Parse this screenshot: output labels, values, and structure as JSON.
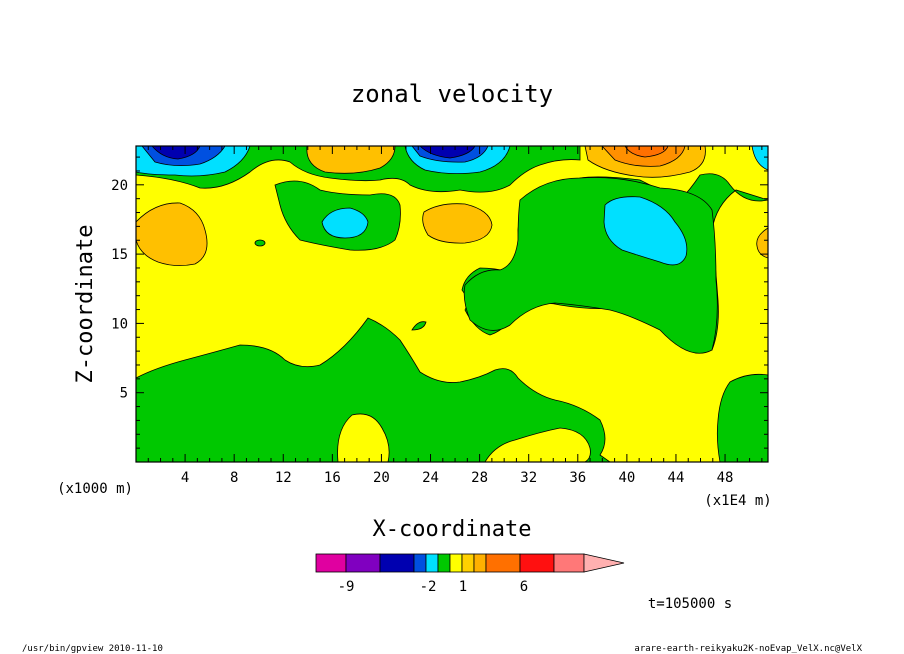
{
  "chart_data": {
    "type": "heatmap",
    "title": "zonal velocity",
    "xlabel": "X-coordinate",
    "ylabel": "Z-coordinate",
    "x_unit_left": "(x1000 m)",
    "x_unit_right": "(x1E4 m)",
    "x_ticks": [
      4,
      8,
      12,
      16,
      20,
      24,
      28,
      32,
      36,
      40,
      44,
      48
    ],
    "y_ticks": [
      5,
      10,
      15,
      20
    ],
    "xlim": [
      0,
      51.5
    ],
    "ylim": [
      0,
      22.8
    ],
    "time_label": "t=105000 s",
    "colorbar": {
      "colors": [
        "#e000a0",
        "#8000c0",
        "#0000b0",
        "#0050e0",
        "#00e0ff",
        "#00c800",
        "#ffff00",
        "#ffd000",
        "#ffb000",
        "#ff7000",
        "#ff1010",
        "#ff7878",
        "#ffb0b0"
      ],
      "tick_labels": [
        "-9",
        "-2",
        "1",
        "6"
      ]
    },
    "levels": {
      "strong_negative": "#0000b0",
      "negative": "#0050e0",
      "weak_negative": "#00e0ff",
      "near_zero_negative": "#00c800",
      "near_zero_positive": "#ffff00",
      "weak_positive": "#ffc000",
      "positive": "#ff9000",
      "strong_positive": "#ff7000"
    }
  },
  "footer": {
    "left": "/usr/bin/gpview  2010-11-10",
    "right": "arare-earth-reikyaku2K-noEvap_VelX.nc@VelX"
  }
}
